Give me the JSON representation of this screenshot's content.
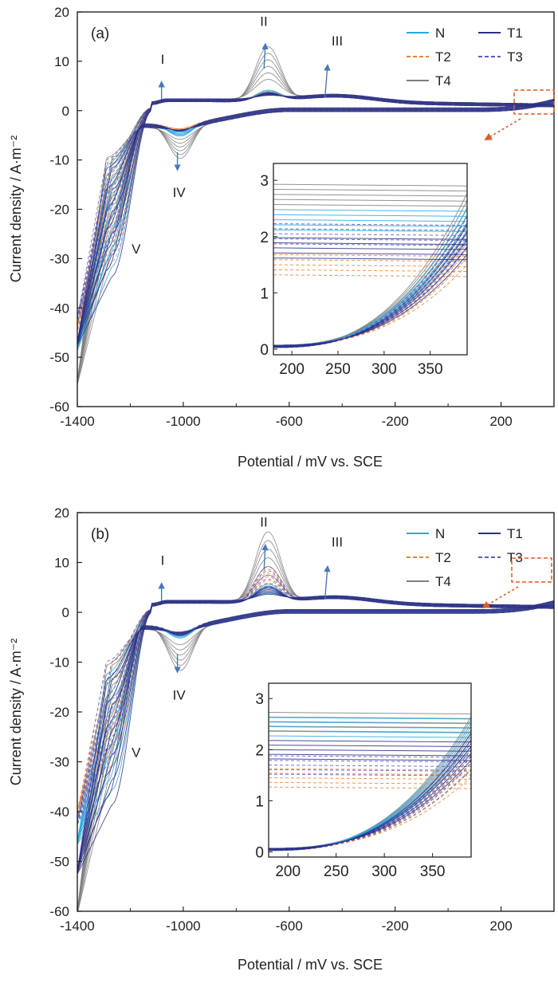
{
  "chart_data": [
    {
      "type": "line",
      "panel_label": "(a)",
      "xlabel": "Potential / mV vs. SCE",
      "ylabel": "Current density / A·m⁻²",
      "xlim": [
        -1400,
        400
      ],
      "ylim": [
        -60,
        20
      ],
      "xticks": [
        "-1400",
        "-1000",
        "-600",
        "-200",
        "200"
      ],
      "yticks": [
        "20",
        "10",
        "0",
        "-10",
        "-20",
        "-30",
        "-40",
        "-50",
        "-60"
      ],
      "annotations": [
        "I",
        "II",
        "III",
        "IV",
        "V"
      ],
      "legend_position": "top-right",
      "series": [
        {
          "name": "N",
          "color": "#29a8e0",
          "dash": "solid",
          "peak_II": 4.5,
          "peak_IV": -6,
          "end_low": -31,
          "end_min": -48,
          "inset_upper": 2.45
        },
        {
          "name": "T1",
          "color": "#2b2f86",
          "dash": "solid",
          "peak_II": 4.0,
          "peak_IV": -5,
          "end_low": -33,
          "end_min": -47,
          "inset_upper": 1.95
        },
        {
          "name": "T2",
          "color": "#e8823a",
          "dash": "dashed",
          "peak_II": 4.2,
          "peak_IV": -4.5,
          "end_low": -30,
          "end_min": -44,
          "inset_upper": 1.65
        },
        {
          "name": "T3",
          "color": "#5a5fbe",
          "dash": "dashed",
          "peak_II": 4.0,
          "peak_IV": -5,
          "end_low": -28,
          "end_min": -42,
          "inset_upper": 2.2
        },
        {
          "name": "T4",
          "color": "#7f7f7f",
          "dash": "solid",
          "peak_II": 13.3,
          "peak_IV": -10.5,
          "end_low": -27,
          "end_min": -55,
          "inset_upper": 2.9
        }
      ],
      "inset": {
        "xlim": [
          180,
          390
        ],
        "ylim": [
          -0.1,
          3.3
        ],
        "xticks": [
          "200",
          "250",
          "300",
          "350"
        ],
        "yticks": [
          "3",
          "2",
          "1",
          "0"
        ]
      }
    },
    {
      "type": "line",
      "panel_label": "(b)",
      "xlabel": "Potential / mV vs. SCE",
      "ylabel": "Current density / A·m⁻²",
      "xlim": [
        -1400,
        400
      ],
      "ylim": [
        -60,
        20
      ],
      "xticks": [
        "-1400",
        "-1000",
        "-600",
        "-200",
        "200"
      ],
      "yticks": [
        "20",
        "10",
        "0",
        "-10",
        "-20",
        "-30",
        "-40",
        "-50",
        "-60"
      ],
      "annotations": [
        "I",
        "II",
        "III",
        "IV",
        "V"
      ],
      "legend_position": "top-right",
      "series": [
        {
          "name": "N",
          "color": "#29a8e0",
          "dash": "solid",
          "peak_II": 6.0,
          "peak_IV": -6,
          "end_low": -35,
          "end_min": -46,
          "inset_upper": 2.6
        },
        {
          "name": "T1",
          "color": "#2b2f86",
          "dash": "solid",
          "peak_II": 5.5,
          "peak_IV": -5.5,
          "end_low": -38,
          "end_min": -52,
          "inset_upper": 2.15
        },
        {
          "name": "T2",
          "color": "#e8823a",
          "dash": "dashed",
          "peak_II": 9.0,
          "peak_IV": -5,
          "end_low": -30,
          "end_min": -40,
          "inset_upper": 1.6
        },
        {
          "name": "T3",
          "color": "#5a5fbe",
          "dash": "dashed",
          "peak_II": 9.5,
          "peak_IV": -5,
          "end_low": -28,
          "end_min": -42,
          "inset_upper": 1.85
        },
        {
          "name": "T4",
          "color": "#7f7f7f",
          "dash": "solid",
          "peak_II": 16.5,
          "peak_IV": -12.5,
          "end_low": -30,
          "end_min": -60,
          "inset_upper": 2.7
        }
      ],
      "inset": {
        "xlim": [
          180,
          390
        ],
        "ylim": [
          -0.1,
          3.3
        ],
        "xticks": [
          "200",
          "250",
          "300",
          "350"
        ],
        "yticks": [
          "3",
          "2",
          "1",
          "0"
        ]
      }
    }
  ],
  "colors": {
    "axis": "#222222",
    "arrow": "#4a78b8",
    "zoom_box": "#e05a2a"
  }
}
